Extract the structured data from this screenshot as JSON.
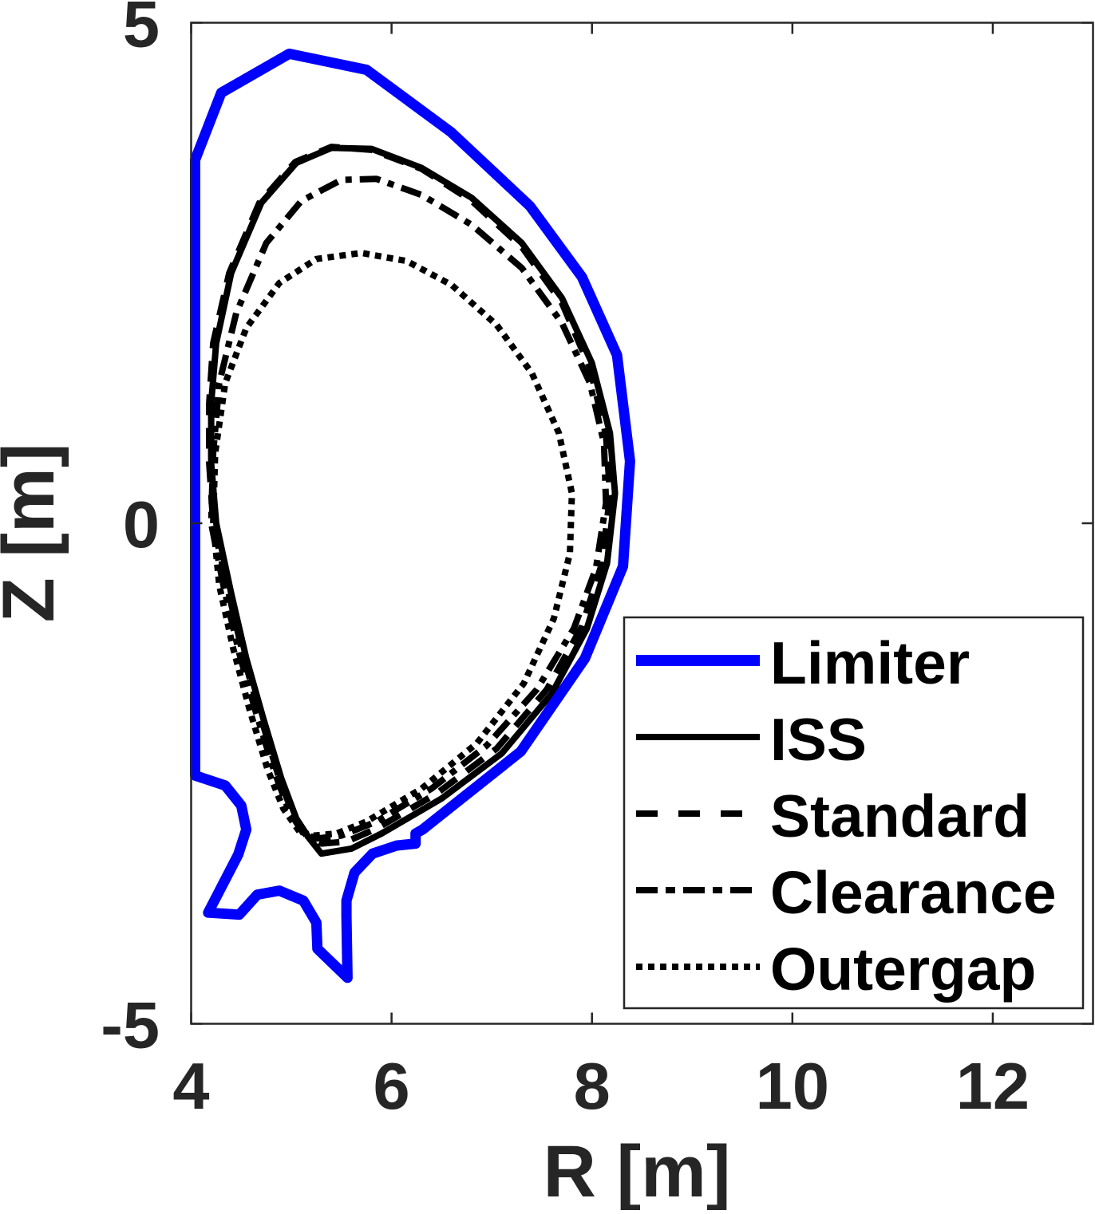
{
  "chart_data": {
    "type": "line",
    "title": "",
    "xlabel": "R [m]",
    "ylabel": "Z [m]",
    "xlim": [
      4,
      13
    ],
    "ylim": [
      -5,
      5
    ],
    "xticks": [
      4,
      6,
      8,
      10,
      12
    ],
    "xtick_labels": [
      "4",
      "6",
      "8",
      "10",
      "12"
    ],
    "yticks": [
      -5,
      0,
      5
    ],
    "ytick_labels": [
      "-5",
      "0",
      "5"
    ],
    "grid": false,
    "box": true,
    "aspect": "equal",
    "legend_position": "lower-right (inside axes)",
    "series": [
      {
        "name": "Limiter",
        "color": "#0000ff",
        "style": "solid",
        "width": 13,
        "points": [
          [
            4.04,
            3.63
          ],
          [
            4.3,
            4.3
          ],
          [
            4.98,
            4.69
          ],
          [
            5.75,
            4.53
          ],
          [
            6.59,
            3.91
          ],
          [
            7.38,
            3.17
          ],
          [
            7.9,
            2.46
          ],
          [
            8.25,
            1.68
          ],
          [
            8.38,
            0.62
          ],
          [
            8.31,
            -0.43
          ],
          [
            7.93,
            -1.35
          ],
          [
            7.29,
            -2.28
          ],
          [
            6.31,
            -3.06
          ],
          [
            6.24,
            -3.1
          ],
          [
            6.24,
            -3.2
          ],
          [
            6.05,
            -3.22
          ],
          [
            5.81,
            -3.3
          ],
          [
            5.63,
            -3.49
          ],
          [
            5.55,
            -3.77
          ],
          [
            5.55,
            -3.93
          ],
          [
            5.56,
            -4.54
          ],
          [
            5.26,
            -4.25
          ],
          [
            5.25,
            -3.99
          ],
          [
            5.12,
            -3.77
          ],
          [
            4.88,
            -3.67
          ],
          [
            4.66,
            -3.71
          ],
          [
            4.48,
            -3.91
          ],
          [
            4.17,
            -3.89
          ],
          [
            4.47,
            -3.31
          ],
          [
            4.55,
            -3.06
          ],
          [
            4.5,
            -2.82
          ],
          [
            4.34,
            -2.62
          ],
          [
            4.04,
            -2.52
          ],
          [
            4.04,
            3.63
          ]
        ]
      },
      {
        "name": "ISS",
        "color": "#000000",
        "style": "solid",
        "width": 8,
        "points": [
          [
            5.18,
            -3.15
          ],
          [
            5.05,
            -2.95
          ],
          [
            4.9,
            -2.55
          ],
          [
            4.72,
            -1.95
          ],
          [
            4.55,
            -1.35
          ],
          [
            4.4,
            -0.7
          ],
          [
            4.25,
            0.0
          ],
          [
            4.2,
            0.6
          ],
          [
            4.2,
            1.2
          ],
          [
            4.25,
            1.8
          ],
          [
            4.4,
            2.5
          ],
          [
            4.7,
            3.2
          ],
          [
            5.05,
            3.6
          ],
          [
            5.4,
            3.75
          ],
          [
            5.8,
            3.74
          ],
          [
            6.3,
            3.55
          ],
          [
            6.8,
            3.25
          ],
          [
            7.3,
            2.8
          ],
          [
            7.7,
            2.25
          ],
          [
            8.0,
            1.6
          ],
          [
            8.18,
            0.9
          ],
          [
            8.23,
            0.3
          ],
          [
            8.15,
            -0.4
          ],
          [
            7.95,
            -1.05
          ],
          [
            7.6,
            -1.7
          ],
          [
            7.1,
            -2.3
          ],
          [
            6.5,
            -2.75
          ],
          [
            5.9,
            -3.1
          ],
          [
            5.6,
            -3.25
          ],
          [
            5.3,
            -3.3
          ],
          [
            5.18,
            -3.15
          ]
        ]
      },
      {
        "name": "Standard",
        "color": "#000000",
        "style": "dashed",
        "width": 8,
        "points": [
          [
            5.15,
            -3.12
          ],
          [
            5.02,
            -2.92
          ],
          [
            4.87,
            -2.52
          ],
          [
            4.69,
            -1.92
          ],
          [
            4.52,
            -1.32
          ],
          [
            4.37,
            -0.68
          ],
          [
            4.22,
            0.0
          ],
          [
            4.18,
            0.6
          ],
          [
            4.18,
            1.2
          ],
          [
            4.22,
            1.8
          ],
          [
            4.38,
            2.5
          ],
          [
            4.68,
            3.2
          ],
          [
            5.04,
            3.61
          ],
          [
            5.4,
            3.76
          ],
          [
            5.8,
            3.73
          ],
          [
            6.3,
            3.54
          ],
          [
            6.8,
            3.22
          ],
          [
            7.3,
            2.76
          ],
          [
            7.7,
            2.2
          ],
          [
            7.98,
            1.55
          ],
          [
            8.14,
            0.88
          ],
          [
            8.18,
            0.28
          ],
          [
            8.1,
            -0.4
          ],
          [
            7.9,
            -1.03
          ],
          [
            7.55,
            -1.66
          ],
          [
            7.05,
            -2.25
          ],
          [
            6.45,
            -2.7
          ],
          [
            5.85,
            -3.05
          ],
          [
            5.55,
            -3.18
          ],
          [
            5.3,
            -3.2
          ],
          [
            5.15,
            -3.12
          ]
        ]
      },
      {
        "name": "Clearance",
        "color": "#000000",
        "style": "dash-dot",
        "width": 8,
        "points": [
          [
            5.12,
            -3.1
          ],
          [
            4.98,
            -2.88
          ],
          [
            4.83,
            -2.48
          ],
          [
            4.65,
            -1.9
          ],
          [
            4.48,
            -1.3
          ],
          [
            4.33,
            -0.66
          ],
          [
            4.2,
            0.0
          ],
          [
            4.22,
            0.7
          ],
          [
            4.28,
            1.4
          ],
          [
            4.45,
            2.1
          ],
          [
            4.75,
            2.8
          ],
          [
            5.1,
            3.22
          ],
          [
            5.5,
            3.43
          ],
          [
            5.85,
            3.44
          ],
          [
            6.3,
            3.28
          ],
          [
            6.8,
            2.98
          ],
          [
            7.3,
            2.55
          ],
          [
            7.7,
            2.0
          ],
          [
            7.98,
            1.4
          ],
          [
            8.12,
            0.8
          ],
          [
            8.14,
            0.2
          ],
          [
            8.04,
            -0.45
          ],
          [
            7.82,
            -1.05
          ],
          [
            7.45,
            -1.66
          ],
          [
            6.95,
            -2.22
          ],
          [
            6.4,
            -2.65
          ],
          [
            5.85,
            -2.98
          ],
          [
            5.5,
            -3.12
          ],
          [
            5.25,
            -3.15
          ],
          [
            5.12,
            -3.1
          ]
        ]
      },
      {
        "name": "Outergap",
        "color": "#000000",
        "style": "dotted",
        "width": 8,
        "points": [
          [
            5.08,
            -3.08
          ],
          [
            4.92,
            -2.85
          ],
          [
            4.76,
            -2.45
          ],
          [
            4.58,
            -1.85
          ],
          [
            4.42,
            -1.25
          ],
          [
            4.28,
            -0.62
          ],
          [
            4.22,
            0.0
          ],
          [
            4.24,
            0.7
          ],
          [
            4.34,
            1.4
          ],
          [
            4.55,
            1.95
          ],
          [
            4.88,
            2.4
          ],
          [
            5.25,
            2.64
          ],
          [
            5.7,
            2.7
          ],
          [
            6.15,
            2.62
          ],
          [
            6.6,
            2.38
          ],
          [
            7.05,
            1.98
          ],
          [
            7.4,
            1.5
          ],
          [
            7.67,
            0.9
          ],
          [
            7.8,
            0.3
          ],
          [
            7.78,
            -0.3
          ],
          [
            7.62,
            -0.95
          ],
          [
            7.32,
            -1.6
          ],
          [
            6.85,
            -2.2
          ],
          [
            6.3,
            -2.65
          ],
          [
            5.75,
            -2.98
          ],
          [
            5.45,
            -3.1
          ],
          [
            5.22,
            -3.12
          ],
          [
            5.08,
            -3.08
          ]
        ]
      }
    ]
  },
  "legend": {
    "items": [
      {
        "label": "Limiter",
        "color": "#0000ff",
        "style": "solid"
      },
      {
        "label": "ISS",
        "color": "#000000",
        "style": "solid"
      },
      {
        "label": "Standard",
        "color": "#000000",
        "style": "dashed"
      },
      {
        "label": "Clearance",
        "color": "#000000",
        "style": "dash-dot"
      },
      {
        "label": "Outergap",
        "color": "#000000",
        "style": "dotted"
      }
    ]
  },
  "axes": {
    "xlabel": "R [m]",
    "ylabel": "Z [m]",
    "axis_color": "#262626"
  }
}
